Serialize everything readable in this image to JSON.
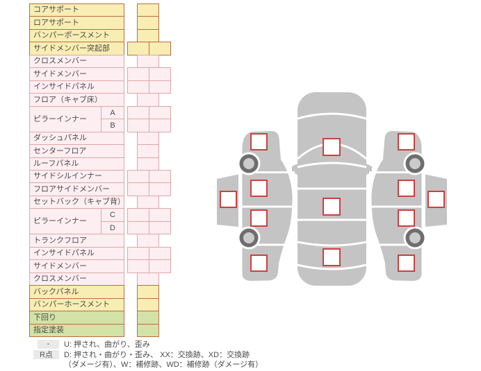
{
  "palette": {
    "yellow_fill": "#f8edb2",
    "yellow_border": "#bd6b45",
    "pink_fill": "#fdeef2",
    "pink_border": "#dda6a8",
    "green_fill": "#d3e2a6",
    "green_border": "#bd6b45",
    "text": "#4a4a4a",
    "car_body": "#c3c4c3",
    "wheel_ring": "#6e6e6e",
    "wheel_hub": "#cbcbcb",
    "checkbox_fill": "#fffdfd",
    "checkbox_border": "#cb4040",
    "badge_bg": "#eaeaea"
  },
  "table": {
    "rows": [
      {
        "label": "コアサポート",
        "color": "yellow",
        "cells": 1
      },
      {
        "label": "ロアサポート",
        "color": "yellow",
        "cells": 1
      },
      {
        "label": "バンパーポースメント",
        "color": "yellow",
        "cells": 1
      },
      {
        "label": "サイドメンバー突起部",
        "color": "yellow",
        "cells": 2
      },
      {
        "label": "クロスメンバー",
        "color": "pink",
        "cells": 1
      },
      {
        "label": "サイドメンバー",
        "color": "pink",
        "cells": 2
      },
      {
        "label": "インサイドパネル",
        "color": "pink",
        "cells": 2
      },
      {
        "label": "フロア（キャブ床）",
        "color": "pink",
        "cells": 1
      },
      {
        "label": "ピラーインナー",
        "sub": "A",
        "group": "start",
        "color": "pink",
        "cells": 2
      },
      {
        "label": "",
        "sub": "B",
        "group": "cont",
        "color": "pink",
        "cells": 2
      },
      {
        "label": "ダッシュパネル",
        "color": "pink",
        "cells": 1
      },
      {
        "label": "センターフロア",
        "color": "pink",
        "cells": 1
      },
      {
        "label": "ルーフパネル",
        "color": "pink",
        "cells": 1
      },
      {
        "label": "サイドシルインナー",
        "color": "pink",
        "cells": 2
      },
      {
        "label": "フロアサイドメンバー",
        "color": "pink",
        "cells": 2
      },
      {
        "label": "セットバック（キャブ背）",
        "color": "pink",
        "cells": 1
      },
      {
        "label": "ピラーインナー",
        "sub": "C",
        "group": "start",
        "color": "pink",
        "cells": 2
      },
      {
        "label": "",
        "sub": "D",
        "group": "cont",
        "color": "pink",
        "cells": 2
      },
      {
        "label": "トランクフロア",
        "color": "pink",
        "cells": 1
      },
      {
        "label": "インサイドパネル",
        "color": "pink",
        "cells": 2
      },
      {
        "label": "サイドメンバー",
        "color": "pink",
        "cells": 2
      },
      {
        "label": "クロスメンバー",
        "color": "pink",
        "cells": 1
      },
      {
        "label": "バックパネル",
        "color": "yellow",
        "cells": 1
      },
      {
        "label": "バンパーホースメント",
        "color": "yellow",
        "cells": 1
      },
      {
        "label": "下回り",
        "color": "green",
        "cells": 1
      },
      {
        "label": "指定塗装",
        "color": "green",
        "cells": 1
      }
    ]
  },
  "legend": {
    "row1_badge": "-",
    "row1_text": "U: 押され、曲がり、歪み",
    "row2_badge": "R点",
    "row2_text": "D: 押され・曲がり・歪み、 XX：交換跡、XD：交換跡",
    "row3_text": "（ダメージ有）、W：補修跡、WD：補修跡（ダメージ有）"
  },
  "diagram": {
    "checkpoints": [
      "left-outer-panel",
      "left-section-1",
      "left-section-2",
      "left-section-3",
      "left-section-4",
      "center-windshield",
      "center-roof",
      "center-rear",
      "right-section-1",
      "right-section-2",
      "right-section-3",
      "right-section-4",
      "right-outer-panel"
    ]
  }
}
